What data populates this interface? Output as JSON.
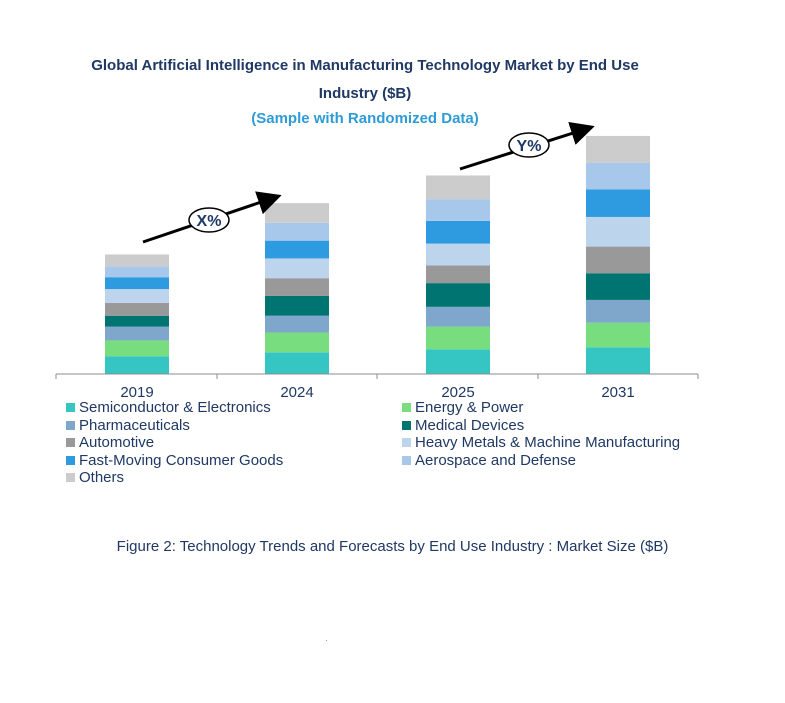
{
  "title_line1": "Global Artificial Intelligence in Manufacturing Technology Market by End Use",
  "title_line2": "Industry ($B)",
  "subtitle": "(Sample with Randomized Data)",
  "caption": "Figure 2: Technology  Trends  and Forecasts by  End Use Industry   : Market Size ($B)",
  "annotations": [
    {
      "text": "X%"
    },
    {
      "text": "Y%"
    }
  ],
  "chart_data": {
    "type": "bar",
    "stacked": true,
    "title": "Global Artificial Intelligence in Manufacturing Technology Market by End Use Industry ($B)",
    "subtitle": "(Sample with Randomized Data)",
    "categories": [
      "2019",
      "2024",
      "2025",
      "2031"
    ],
    "ylim": [
      0,
      245
    ],
    "legend_position": "bottom",
    "grid": false,
    "series": [
      {
        "name": "Semiconductor & Electronics",
        "color": "#35c6c4",
        "values": [
          18,
          22,
          25,
          27
        ]
      },
      {
        "name": "Energy & Power",
        "color": "#77dd7f",
        "values": [
          16,
          20,
          23,
          25
        ]
      },
      {
        "name": "Pharmaceuticals",
        "color": "#7fa7cb",
        "values": [
          14,
          17,
          20,
          23
        ]
      },
      {
        "name": "Medical Devices",
        "color": "#007470",
        "values": [
          11,
          20,
          24,
          27
        ]
      },
      {
        "name": "Automotive",
        "color": "#999999",
        "values": [
          13,
          18,
          18,
          27
        ]
      },
      {
        "name": "Heavy Metals & Machine Manufacturing",
        "color": "#bcd4ec",
        "values": [
          14,
          20,
          22,
          30
        ]
      },
      {
        "name": "Fast-Moving Consumer Goods",
        "color": "#2e9be0",
        "values": [
          12,
          18,
          23,
          28
        ]
      },
      {
        "name": "Aerospace and Defense",
        "color": "#a7c7eb",
        "values": [
          11,
          18,
          22,
          27
        ]
      },
      {
        "name": "Others",
        "color": "#cccccc",
        "values": [
          12,
          20,
          24,
          27
        ]
      }
    ]
  }
}
